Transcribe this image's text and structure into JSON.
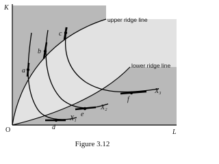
{
  "axes": {
    "y": "K",
    "x": "L",
    "origin": "O"
  },
  "ridge_lines": {
    "upper": "upper ridge line",
    "lower": "lower ridge line"
  },
  "points": [
    "a",
    "b",
    "c",
    "d",
    "e",
    "f"
  ],
  "isoquants": [
    "X₁",
    "X₂",
    "X₃"
  ],
  "caption": "Figure 3.12"
}
